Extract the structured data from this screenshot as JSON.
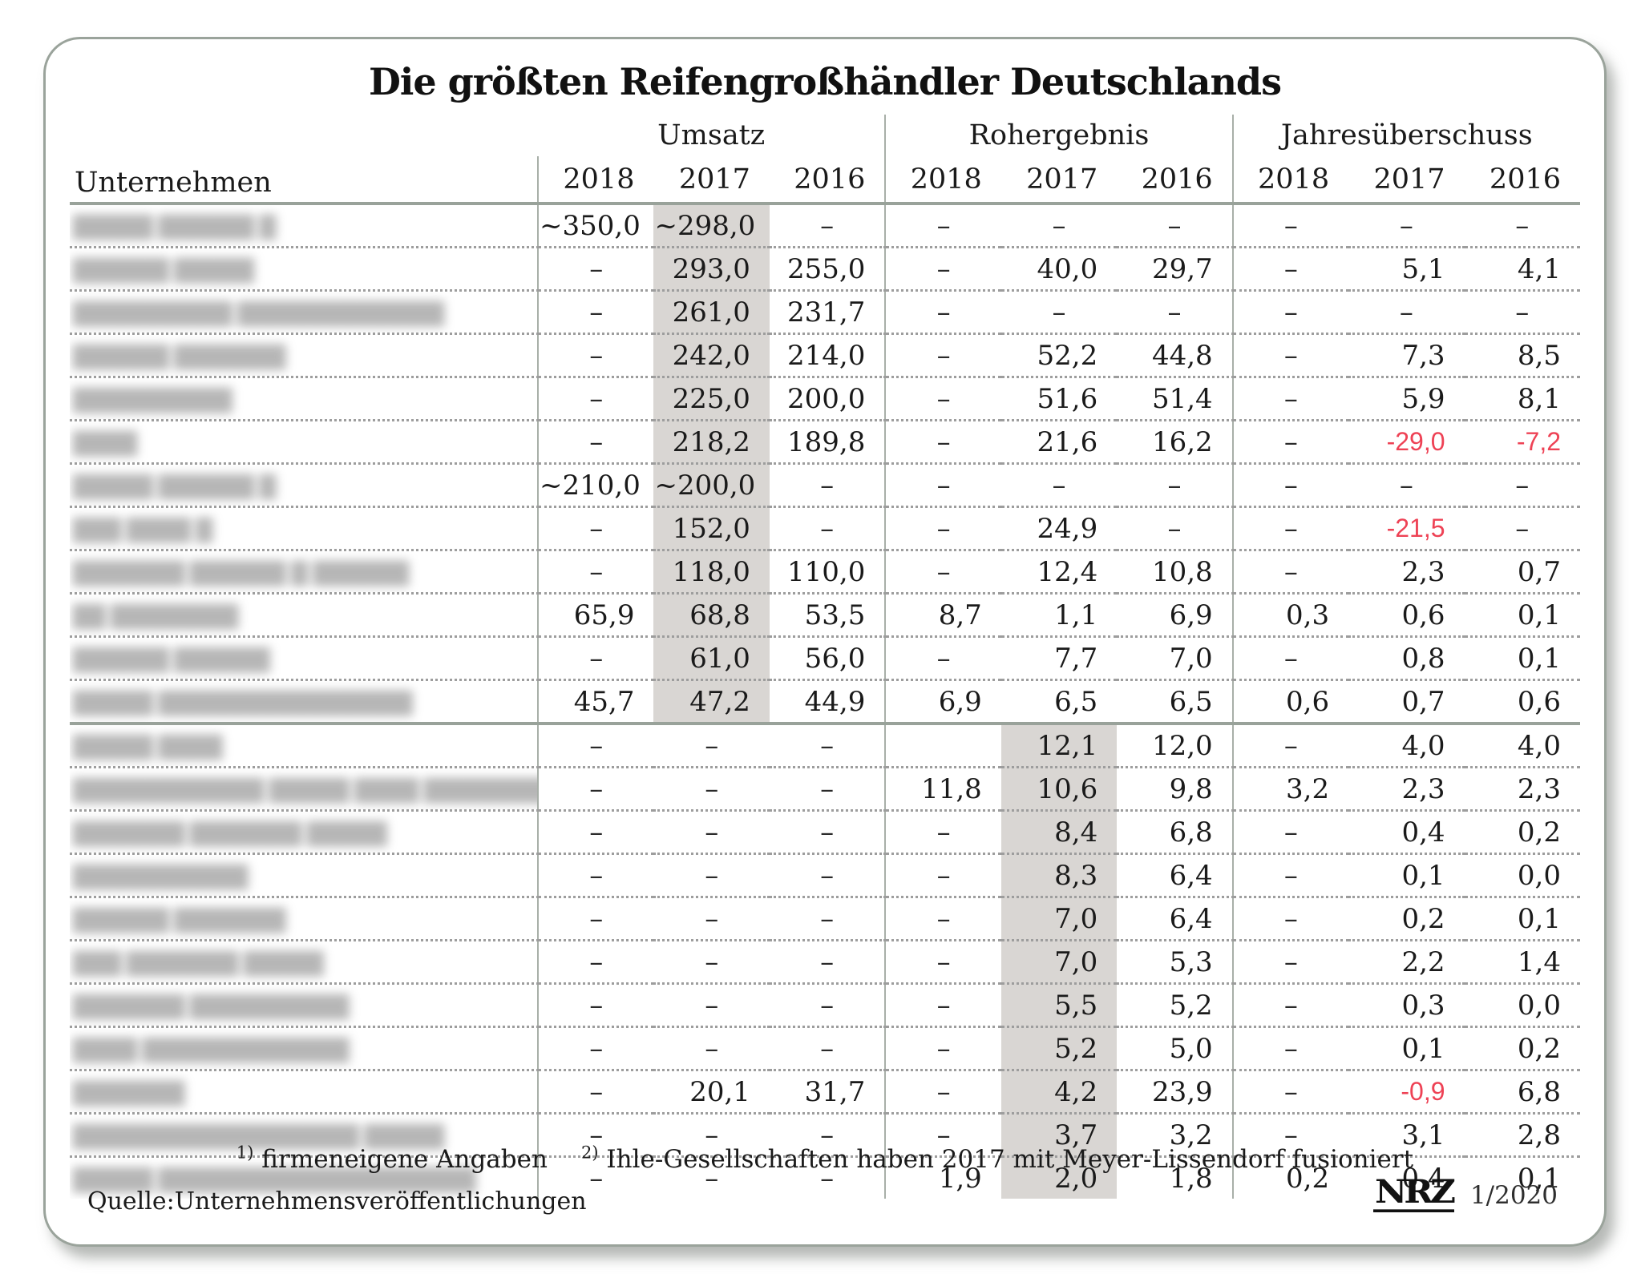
{
  "chart_data": {
    "type": "table",
    "title": "Die größten Reifengroßhändler Deutschlands",
    "company_column_label": "Unternehmen",
    "column_groups": [
      "Umsatz",
      "Rohergebnis",
      "Jahresüberschuss"
    ],
    "years": [
      "2018",
      "2017",
      "2016"
    ],
    "company_names_blurred": true,
    "highlighted_columns": {
      "section1": "Umsatz 2017",
      "section2": "Rohergebnis 2017"
    },
    "rows": [
      {
        "section": 1,
        "company_blurred": "█████ ██████ █",
        "umsatz": [
          "~350,0",
          "~298,0",
          "–"
        ],
        "rohergebnis": [
          "–",
          "–",
          "–"
        ],
        "jahresueberschuss": [
          "–",
          "–",
          "–"
        ],
        "red_ju": []
      },
      {
        "section": 1,
        "company_blurred": "██████ █████",
        "umsatz": [
          "–",
          "293,0",
          "255,0"
        ],
        "rohergebnis": [
          "–",
          "40,0",
          "29,7"
        ],
        "jahresueberschuss": [
          "–",
          "5,1",
          "4,1"
        ],
        "red_ju": []
      },
      {
        "section": 1,
        "company_blurred": "██████████ █████████████",
        "umsatz": [
          "–",
          "261,0",
          "231,7"
        ],
        "rohergebnis": [
          "–",
          "–",
          "–"
        ],
        "jahresueberschuss": [
          "–",
          "–",
          "–"
        ],
        "red_ju": []
      },
      {
        "section": 1,
        "company_blurred": "██████ ███████",
        "umsatz": [
          "–",
          "242,0",
          "214,0"
        ],
        "rohergebnis": [
          "–",
          "52,2",
          "44,8"
        ],
        "jahresueberschuss": [
          "–",
          "7,3",
          "8,5"
        ],
        "red_ju": []
      },
      {
        "section": 1,
        "company_blurred": "██████████",
        "umsatz": [
          "–",
          "225,0",
          "200,0"
        ],
        "rohergebnis": [
          "–",
          "51,6",
          "51,4"
        ],
        "jahresueberschuss": [
          "–",
          "5,9",
          "8,1"
        ],
        "red_ju": []
      },
      {
        "section": 1,
        "company_blurred": "████",
        "umsatz": [
          "–",
          "218,2",
          "189,8"
        ],
        "rohergebnis": [
          "–",
          "21,6",
          "16,2"
        ],
        "jahresueberschuss": [
          "–",
          "-29,0",
          "-7,2"
        ],
        "red_ju": [
          1,
          2
        ]
      },
      {
        "section": 1,
        "company_blurred": "█████ ██████ █",
        "umsatz": [
          "~210,0",
          "~200,0",
          "–"
        ],
        "rohergebnis": [
          "–",
          "–",
          "–"
        ],
        "jahresueberschuss": [
          "–",
          "–",
          "–"
        ],
        "red_ju": []
      },
      {
        "section": 1,
        "company_blurred": "███ ████ █",
        "umsatz": [
          "–",
          "152,0",
          "–"
        ],
        "rohergebnis": [
          "–",
          "24,9",
          "–"
        ],
        "jahresueberschuss": [
          "–",
          "-21,5",
          "–"
        ],
        "red_ju": [
          1
        ]
      },
      {
        "section": 1,
        "company_blurred": "███████ ██████ █ ██████",
        "umsatz": [
          "–",
          "118,0",
          "110,0"
        ],
        "rohergebnis": [
          "–",
          "12,4",
          "10,8"
        ],
        "jahresueberschuss": [
          "–",
          "2,3",
          "0,7"
        ],
        "red_ju": []
      },
      {
        "section": 1,
        "company_blurred": "██ ████████",
        "umsatz": [
          "65,9",
          "68,8",
          "53,5"
        ],
        "rohergebnis": [
          "8,7",
          "1,1",
          "6,9"
        ],
        "jahresueberschuss": [
          "0,3",
          "0,6",
          "0,1"
        ],
        "red_ju": []
      },
      {
        "section": 1,
        "company_blurred": "██████ ██████",
        "umsatz": [
          "–",
          "61,0",
          "56,0"
        ],
        "rohergebnis": [
          "–",
          "7,7",
          "7,0"
        ],
        "jahresueberschuss": [
          "–",
          "0,8",
          "0,1"
        ],
        "red_ju": []
      },
      {
        "section": 1,
        "company_blurred": "█████ ████████████████",
        "umsatz": [
          "45,7",
          "47,2",
          "44,9"
        ],
        "rohergebnis": [
          "6,9",
          "6,5",
          "6,5"
        ],
        "jahresueberschuss": [
          "0,6",
          "0,7",
          "0,6"
        ],
        "red_ju": []
      },
      {
        "section": 2,
        "company_blurred": "█████ ████",
        "umsatz": [
          "–",
          "–",
          "–"
        ],
        "rohergebnis": [
          "",
          "12,1",
          "12,0"
        ],
        "jahresueberschuss": [
          "–",
          "4,0",
          "4,0"
        ],
        "red_ju": []
      },
      {
        "section": 2,
        "company_blurred": "████████████ █████ ████ ████████",
        "umsatz": [
          "–",
          "–",
          "–"
        ],
        "rohergebnis": [
          "11,8",
          "10,6",
          "9,8"
        ],
        "jahresueberschuss": [
          "3,2",
          "2,3",
          "2,3"
        ],
        "red_ju": []
      },
      {
        "section": 2,
        "company_blurred": "███████ ███████ █████",
        "umsatz": [
          "–",
          "–",
          "–"
        ],
        "rohergebnis": [
          "–",
          "8,4",
          "6,8"
        ],
        "jahresueberschuss": [
          "–",
          "0,4",
          "0,2"
        ],
        "red_ju": []
      },
      {
        "section": 2,
        "company_blurred": "███████████",
        "umsatz": [
          "–",
          "–",
          "–"
        ],
        "rohergebnis": [
          "–",
          "8,3",
          "6,4"
        ],
        "jahresueberschuss": [
          "–",
          "0,1",
          "0,0"
        ],
        "red_ju": []
      },
      {
        "section": 2,
        "company_blurred": "██████ ███████",
        "umsatz": [
          "–",
          "–",
          "–"
        ],
        "rohergebnis": [
          "–",
          "7,0",
          "6,4"
        ],
        "jahresueberschuss": [
          "–",
          "0,2",
          "0,1"
        ],
        "red_ju": []
      },
      {
        "section": 2,
        "company_blurred": "███ ███████ █████",
        "umsatz": [
          "–",
          "–",
          "–"
        ],
        "rohergebnis": [
          "–",
          "7,0",
          "5,3"
        ],
        "jahresueberschuss": [
          "–",
          "2,2",
          "1,4"
        ],
        "red_ju": []
      },
      {
        "section": 2,
        "company_blurred": "███████ ██████████",
        "umsatz": [
          "–",
          "–",
          "–"
        ],
        "rohergebnis": [
          "–",
          "5,5",
          "5,2"
        ],
        "jahresueberschuss": [
          "–",
          "0,3",
          "0,0"
        ],
        "red_ju": []
      },
      {
        "section": 2,
        "company_blurred": "████ █████████████",
        "umsatz": [
          "–",
          "–",
          "–"
        ],
        "rohergebnis": [
          "–",
          "5,2",
          "5,0"
        ],
        "jahresueberschuss": [
          "–",
          "0,1",
          "0,2"
        ],
        "red_ju": []
      },
      {
        "section": 2,
        "company_blurred": "███████",
        "umsatz": [
          "–",
          "20,1",
          "31,7"
        ],
        "rohergebnis": [
          "–",
          "4,2",
          "23,9"
        ],
        "jahresueberschuss": [
          "–",
          "-0,9",
          "6,8"
        ],
        "red_ju": [
          1
        ]
      },
      {
        "section": 2,
        "company_blurred": "██████████████████ █████",
        "umsatz": [
          "–",
          "–",
          "–"
        ],
        "rohergebnis": [
          "–",
          "3,7",
          "3,2"
        ],
        "jahresueberschuss": [
          "–",
          "3,1",
          "2,8"
        ],
        "red_ju": []
      },
      {
        "section": 2,
        "company_blurred": "█████ ████████████████████",
        "umsatz": [
          "–",
          "–",
          "–"
        ],
        "rohergebnis": [
          "1,9",
          "2,0",
          "1,8"
        ],
        "jahresueberschuss": [
          "0,2",
          "0,4",
          "0,1"
        ],
        "red_ju": []
      }
    ]
  },
  "footnotes": [
    {
      "sup": "1)",
      "text": "firmeneigene Angaben"
    },
    {
      "sup": "2)",
      "text": "Ihle-Gesellschaften haben 2017 mit Meyer-Lissendorf fusioniert"
    }
  ],
  "source_label": "Quelle:Unternehmensveröffentlichungen",
  "logo": {
    "text": "NRZ",
    "issue": "1/2020"
  },
  "colors": {
    "accent_red": "#ee4255",
    "highlight_gray": "#d9d6d3",
    "rule_gray_green": "#99a29a"
  }
}
